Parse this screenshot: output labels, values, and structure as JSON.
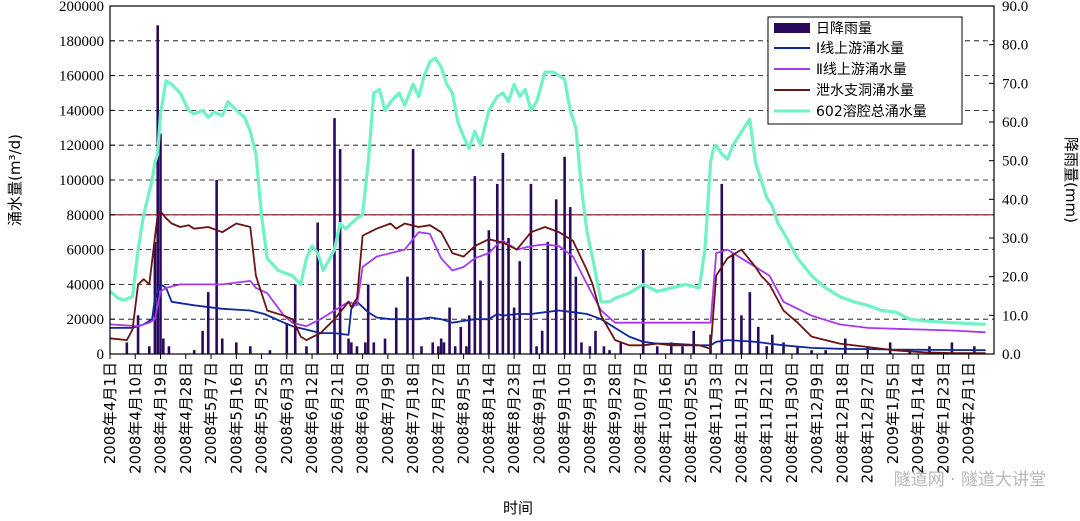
{
  "chart_data": {
    "type": "line",
    "xlabel": "时间",
    "ylabel_left": "涌水量(m³/d)",
    "ylabel_right": "降雨量(mm)",
    "y_left_lim": [
      0,
      200000
    ],
    "y_right_lim": [
      0,
      90
    ],
    "y_left_ticks": [
      "0",
      "20000",
      "40000",
      "60000",
      "80000",
      "100000",
      "120000",
      "140000",
      "160000",
      "180000",
      "200000"
    ],
    "y_right_ticks": [
      "0.0",
      "10.0",
      "20.0",
      "30.0",
      "40.0",
      "50.0",
      "60.0",
      "70.0",
      "80.0",
      "90.0"
    ],
    "x_range_days": [
      0,
      315
    ],
    "x_ticks": [
      "2008年4月1日",
      "2008年4月10日",
      "2008年4月19日",
      "2008年4月28日",
      "2008年5月7日",
      "2008年5月16日",
      "2008年5月25日",
      "2008年6月3日",
      "2008年6月12日",
      "2008年6月21日",
      "2008年6月30日",
      "2008年7月9日",
      "2008年7月18日",
      "2008年7月27日",
      "2008年8月5日",
      "2008年8月14日",
      "2008年8月23日",
      "2008年9月1日",
      "2008年9月10日",
      "2008年9月19日",
      "2008年9月28日",
      "2008年10月7日",
      "2008年10月16日",
      "2008年10月25日",
      "2008年11月3日",
      "2008年11月12日",
      "2008年11月21日",
      "2008年11月30日",
      "2008年12月9日",
      "2008年12月18日",
      "2008年12月27日",
      "2009年1月5日",
      "2009年1月14日",
      "2009年1月23日",
      "2009年2月1日"
    ],
    "reference_line": {
      "y": 80000
    },
    "legend": {
      "position": "top-right",
      "entries": [
        "日降雨量",
        "Ⅰ线上游涌水量",
        "Ⅱ线上游涌水量",
        "泄水支洞涌水量",
        "602溶腔总涌水量"
      ]
    },
    "rainfall": {
      "name": "日降雨量",
      "color": "#2b0a5e",
      "axis": "right",
      "days": [
        6,
        10,
        14,
        16,
        17,
        18,
        19,
        21,
        30,
        33,
        35,
        38,
        40,
        45,
        50,
        57,
        63,
        66,
        70,
        74,
        80,
        82,
        85,
        86,
        88,
        91,
        92,
        94,
        98,
        102,
        106,
        108,
        111,
        115,
        117,
        118,
        119,
        121,
        123,
        125,
        127,
        128,
        130,
        132,
        135,
        138,
        140,
        142,
        144,
        146,
        150,
        152,
        154,
        156,
        159,
        162,
        164,
        166,
        168,
        171,
        173,
        176,
        178,
        182,
        190,
        195,
        200,
        204,
        208,
        214,
        218,
        222,
        225,
        228,
        231,
        234,
        236,
        240,
        245,
        250,
        255,
        262,
        270,
        278,
        285,
        292,
        300,
        308
      ],
      "values": [
        3,
        10,
        2,
        29,
        85,
        57,
        4,
        2,
        1,
        6,
        16,
        45,
        4,
        3,
        2,
        1,
        8,
        18,
        2,
        34,
        61,
        53,
        4,
        3,
        2,
        3,
        18,
        3,
        4,
        12,
        20,
        53,
        2,
        3,
        2,
        4,
        3,
        12,
        2,
        7,
        2,
        10,
        46,
        19,
        32,
        44,
        52,
        30,
        12,
        24,
        44,
        2,
        6,
        29,
        40,
        51,
        38,
        20,
        3,
        2,
        6,
        2,
        1,
        3,
        27,
        2,
        3,
        2,
        6,
        5,
        44,
        26,
        10,
        16,
        7,
        2,
        5,
        3,
        2,
        1,
        1,
        4,
        2,
        3,
        1,
        2,
        3,
        2
      ]
    },
    "series": [
      {
        "name": "Ⅰ线上游涌水量",
        "color": "#10289a",
        "axis": "left",
        "x": [
          0,
          8,
          12,
          15,
          16,
          18,
          20,
          22,
          30,
          40,
          50,
          55,
          62,
          65,
          70,
          75,
          80,
          85,
          86,
          88,
          92,
          95,
          100,
          105,
          110,
          114,
          118,
          122,
          126,
          130,
          135,
          138,
          140,
          145,
          150,
          155,
          160,
          165,
          170,
          175,
          180,
          185,
          190,
          195,
          200,
          205,
          210,
          214,
          216,
          220,
          225,
          230,
          235,
          240,
          250,
          260,
          270,
          280,
          290,
          300,
          312
        ],
        "y": [
          15000,
          15000,
          17000,
          20000,
          32000,
          40000,
          38000,
          30000,
          28000,
          26000,
          25000,
          23000,
          18000,
          16000,
          14000,
          12000,
          12000,
          11000,
          26000,
          30000,
          24000,
          21000,
          20000,
          20000,
          20000,
          21000,
          20000,
          18000,
          19000,
          20000,
          20000,
          23000,
          22000,
          23000,
          23000,
          24000,
          25000,
          24000,
          23000,
          20000,
          15000,
          10000,
          7000,
          6000,
          6000,
          5500,
          5000,
          5000,
          7000,
          8000,
          7500,
          7000,
          6000,
          5000,
          3500,
          3000,
          2800,
          2500,
          2400,
          2300,
          2200
        ]
      },
      {
        "name": "Ⅱ线上游涌水量",
        "color": "#a638f0",
        "axis": "left",
        "x": [
          0,
          10,
          14,
          16,
          17,
          18,
          20,
          25,
          30,
          40,
          50,
          52,
          56,
          62,
          65,
          70,
          75,
          80,
          85,
          88,
          90,
          95,
          100,
          105,
          110,
          114,
          118,
          122,
          126,
          130,
          135,
          138,
          140,
          145,
          150,
          155,
          160,
          165,
          170,
          175,
          180,
          185,
          190,
          195,
          200,
          205,
          210,
          214,
          216,
          220,
          225,
          230,
          235,
          240,
          250,
          260,
          270,
          280,
          290,
          300,
          312
        ],
        "y": [
          17000,
          16000,
          18000,
          20000,
          28000,
          36000,
          38000,
          40000,
          40000,
          40000,
          42000,
          38000,
          35000,
          22000,
          18000,
          16000,
          20000,
          25000,
          30000,
          28000,
          50000,
          56000,
          58000,
          60000,
          70000,
          69000,
          55000,
          48000,
          50000,
          55000,
          58000,
          63000,
          65000,
          60000,
          62000,
          63000,
          62000,
          56000,
          40000,
          25000,
          18000,
          18000,
          18000,
          18000,
          18000,
          18000,
          18000,
          18000,
          58000,
          60000,
          55000,
          50000,
          45000,
          30000,
          22000,
          17000,
          15000,
          14500,
          14000,
          13500,
          12500
        ]
      },
      {
        "name": "泄水支洞涌水量",
        "color": "#6a1414",
        "axis": "left",
        "x": [
          0,
          6,
          8,
          10,
          12,
          14,
          16,
          17,
          18,
          20,
          22,
          25,
          28,
          30,
          35,
          40,
          45,
          50,
          52,
          56,
          62,
          65,
          68,
          70,
          75,
          80,
          85,
          86,
          88,
          90,
          95,
          100,
          102,
          105,
          110,
          114,
          118,
          122,
          126,
          130,
          135,
          140,
          145,
          150,
          155,
          160,
          165,
          170,
          172,
          175,
          180,
          185,
          190,
          195,
          200,
          205,
          210,
          214,
          216,
          220,
          225,
          230,
          232,
          235,
          240,
          245,
          250,
          260,
          270,
          280,
          290,
          300,
          312
        ],
        "y": [
          9000,
          8000,
          14000,
          40000,
          43000,
          40000,
          67000,
          80000,
          82000,
          78000,
          75000,
          73000,
          74000,
          72000,
          73000,
          70000,
          75000,
          73000,
          45000,
          25000,
          22000,
          20000,
          10000,
          8000,
          12000,
          20000,
          30000,
          27000,
          32000,
          68000,
          72000,
          75000,
          72000,
          75000,
          73000,
          74000,
          70000,
          58000,
          56000,
          62000,
          66000,
          64000,
          60000,
          70000,
          73000,
          70000,
          65000,
          48000,
          40000,
          22000,
          8000,
          5000,
          5000,
          6000,
          5000,
          5000,
          5000,
          3000,
          45000,
          55000,
          60000,
          50000,
          45000,
          40000,
          25000,
          18000,
          10000,
          6000,
          4000,
          2000,
          1000,
          500,
          500
        ]
      },
      {
        "name": "602溶腔总涌水量",
        "color": "#70f2c6",
        "axis": "left",
        "x": [
          0,
          3,
          5,
          8,
          10,
          12,
          15,
          16,
          17,
          18,
          20,
          22,
          25,
          28,
          30,
          33,
          35,
          37,
          40,
          42,
          45,
          48,
          50,
          52,
          54,
          56,
          60,
          65,
          68,
          70,
          72,
          74,
          76,
          80,
          82,
          84,
          88,
          90,
          92,
          94,
          96,
          98,
          100,
          103,
          105,
          108,
          110,
          112,
          114,
          116,
          118,
          120,
          122,
          124,
          126,
          128,
          130,
          132,
          135,
          138,
          140,
          142,
          144,
          146,
          148,
          150,
          152,
          155,
          158,
          160,
          162,
          164,
          166,
          168,
          170,
          172,
          175,
          178,
          180,
          185,
          190,
          195,
          200,
          205,
          210,
          212,
          214,
          215,
          216,
          218,
          220,
          222,
          224,
          226,
          228,
          230,
          232,
          234,
          236,
          238,
          240,
          245,
          250,
          255,
          260,
          265,
          270,
          275,
          280,
          285,
          290,
          300,
          312
        ],
        "y": [
          36000,
          32000,
          31000,
          33000,
          60000,
          80000,
          100000,
          110000,
          115000,
          138000,
          157000,
          155000,
          150000,
          140000,
          138000,
          140000,
          136000,
          139000,
          137000,
          145000,
          140000,
          136000,
          128000,
          115000,
          80000,
          55000,
          48000,
          45000,
          40000,
          55000,
          62000,
          58000,
          48000,
          60000,
          75000,
          72000,
          78000,
          80000,
          110000,
          150000,
          152000,
          140000,
          145000,
          150000,
          143000,
          155000,
          148000,
          160000,
          168000,
          170000,
          165000,
          155000,
          150000,
          133000,
          125000,
          118000,
          128000,
          120000,
          140000,
          148000,
          150000,
          145000,
          155000,
          148000,
          152000,
          140000,
          145000,
          162000,
          162000,
          160000,
          158000,
          140000,
          130000,
          95000,
          70000,
          55000,
          30000,
          30000,
          32000,
          35000,
          40000,
          36000,
          38000,
          40000,
          38000,
          60000,
          110000,
          118000,
          120000,
          115000,
          112000,
          120000,
          125000,
          130000,
          135000,
          110000,
          100000,
          90000,
          85000,
          75000,
          70000,
          55000,
          45000,
          38000,
          33000,
          30000,
          28000,
          25000,
          24000,
          20000,
          19000,
          18000,
          17000
        ]
      }
    ]
  },
  "watermark": "隧道网 · 隧道大讲堂"
}
